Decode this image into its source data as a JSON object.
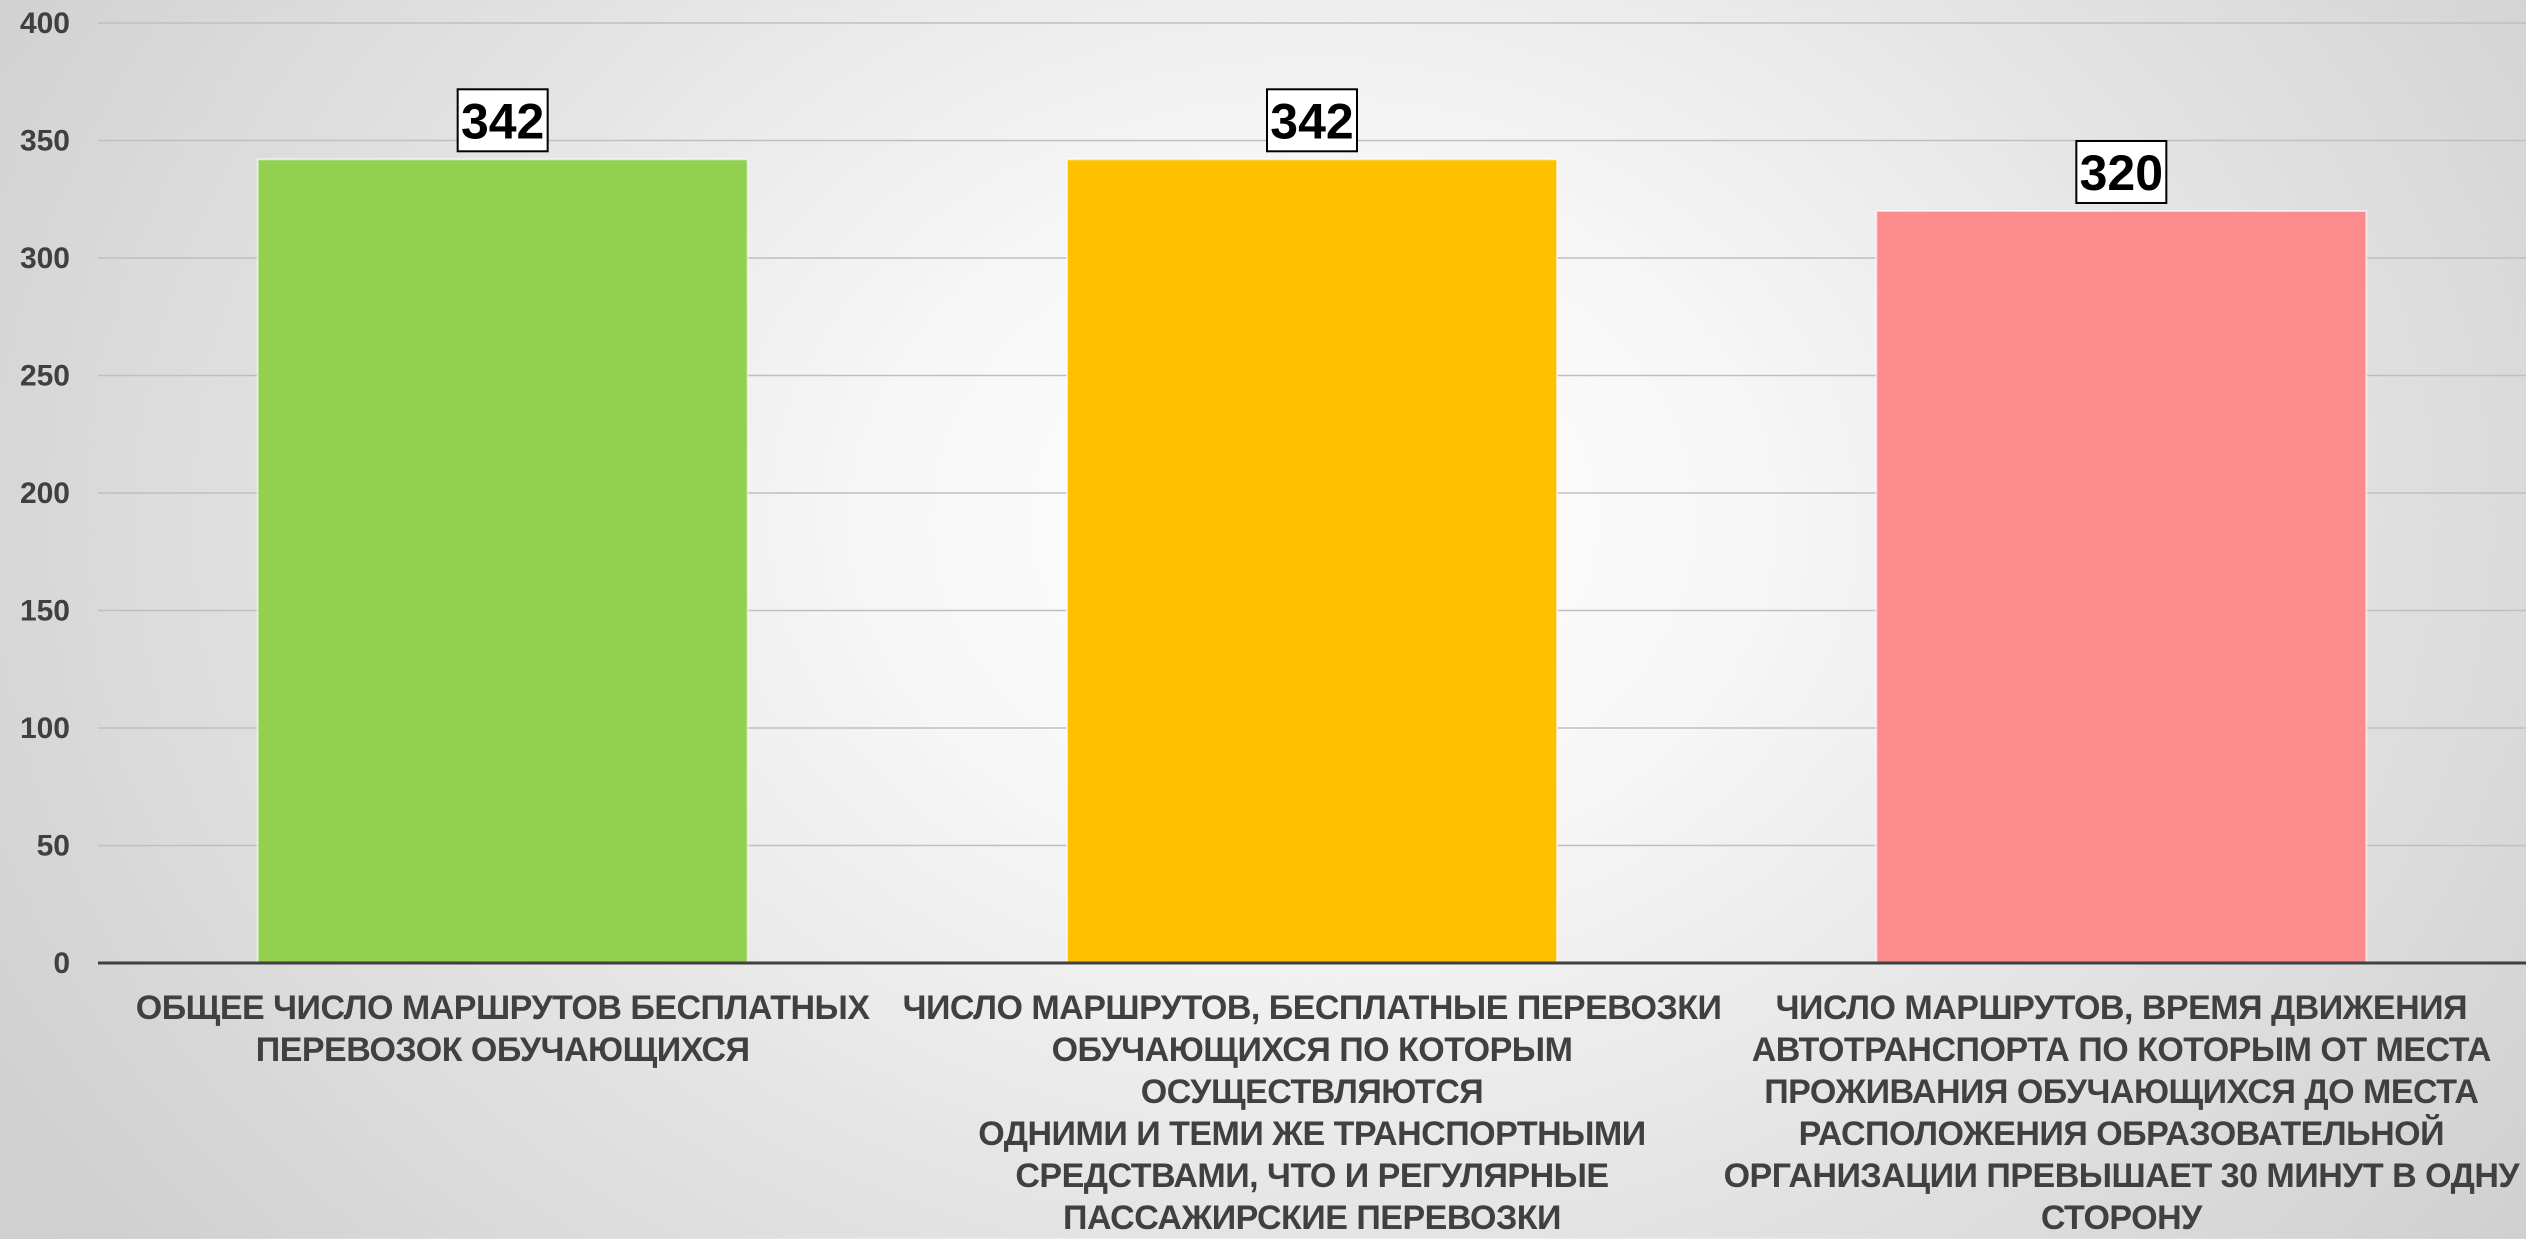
{
  "chart_data": {
    "type": "bar",
    "title": "",
    "xlabel": "",
    "ylabel": "",
    "ylim": [
      0,
      400
    ],
    "yticks": [
      0,
      50,
      100,
      150,
      200,
      250,
      300,
      350,
      400
    ],
    "grid": true,
    "legend": "none",
    "categories": [
      [
        "ОБЩЕЕ ЧИСЛО МАРШРУТОВ БЕСПЛАТНЫХ",
        "ПЕРЕВОЗОК ОБУЧАЮЩИХСЯ"
      ],
      [
        "ЧИСЛО МАРШРУТОВ, БЕСПЛАТНЫЕ ПЕРЕВОЗКИ",
        "ОБУЧАЮЩИХСЯ ПО КОТОРЫМ ОСУЩЕСТВЛЯЮТСЯ",
        "ОДНИМИ И ТЕМИ ЖЕ ТРАНСПОРТНЫМИ",
        "СРЕДСТВАМИ, ЧТО И РЕГУЛЯРНЫЕ",
        "ПАССАЖИРСКИЕ ПЕРЕВОЗКИ"
      ],
      [
        "ЧИСЛО МАРШРУТОВ, ВРЕМЯ ДВИЖЕНИЯ",
        "АВТОТРАНСПОРТА ПО КОТОРЫМ ОТ МЕСТА",
        "ПРОЖИВАНИЯ ОБУЧАЮЩИХСЯ ДО МЕСТА",
        "РАСПОЛОЖЕНИЯ ОБРАЗОВАТЕЛЬНОЙ",
        "ОРГАНИЗАЦИИ ПРЕВЫШАЕТ 30 МИНУТ В ОДНУ",
        "СТОРОНУ"
      ]
    ],
    "values": [
      342,
      342,
      320
    ],
    "colors": [
      "#92d050",
      "#ffc000",
      "#fc8b8e"
    ]
  }
}
